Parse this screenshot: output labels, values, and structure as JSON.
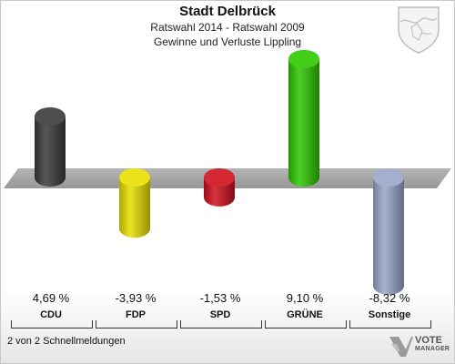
{
  "header": {
    "title": "Stadt Delbrück",
    "subtitle1": "Ratswahl 2014 - Ratswahl 2009",
    "subtitle2": "Gewinne und Verluste Lippling"
  },
  "chart_data": {
    "type": "bar",
    "title": "Stadt Delbrück",
    "subtitle": "Ratswahl 2014 - Ratswahl 2009 / Gewinne und Verluste Lippling",
    "categories": [
      "CDU",
      "FDP",
      "SPD",
      "GRÜNE",
      "Sonstige"
    ],
    "values": [
      4.69,
      -3.93,
      -1.53,
      9.1,
      -8.32
    ],
    "value_labels": [
      "4,69 %",
      "-3,93 %",
      "-1,53 %",
      "9,10 %",
      "-8,32 %"
    ],
    "colors": [
      "#3a3a3a",
      "#e8e000",
      "#d0101e",
      "#2ec800",
      "#9aa6c8"
    ],
    "xlabel": "",
    "ylabel": "",
    "baseline": 0
  },
  "footer": {
    "note": "2 von 2 Schnellmeldungen",
    "logo_line1": "VOTE",
    "logo_line2": "MANAGER"
  }
}
